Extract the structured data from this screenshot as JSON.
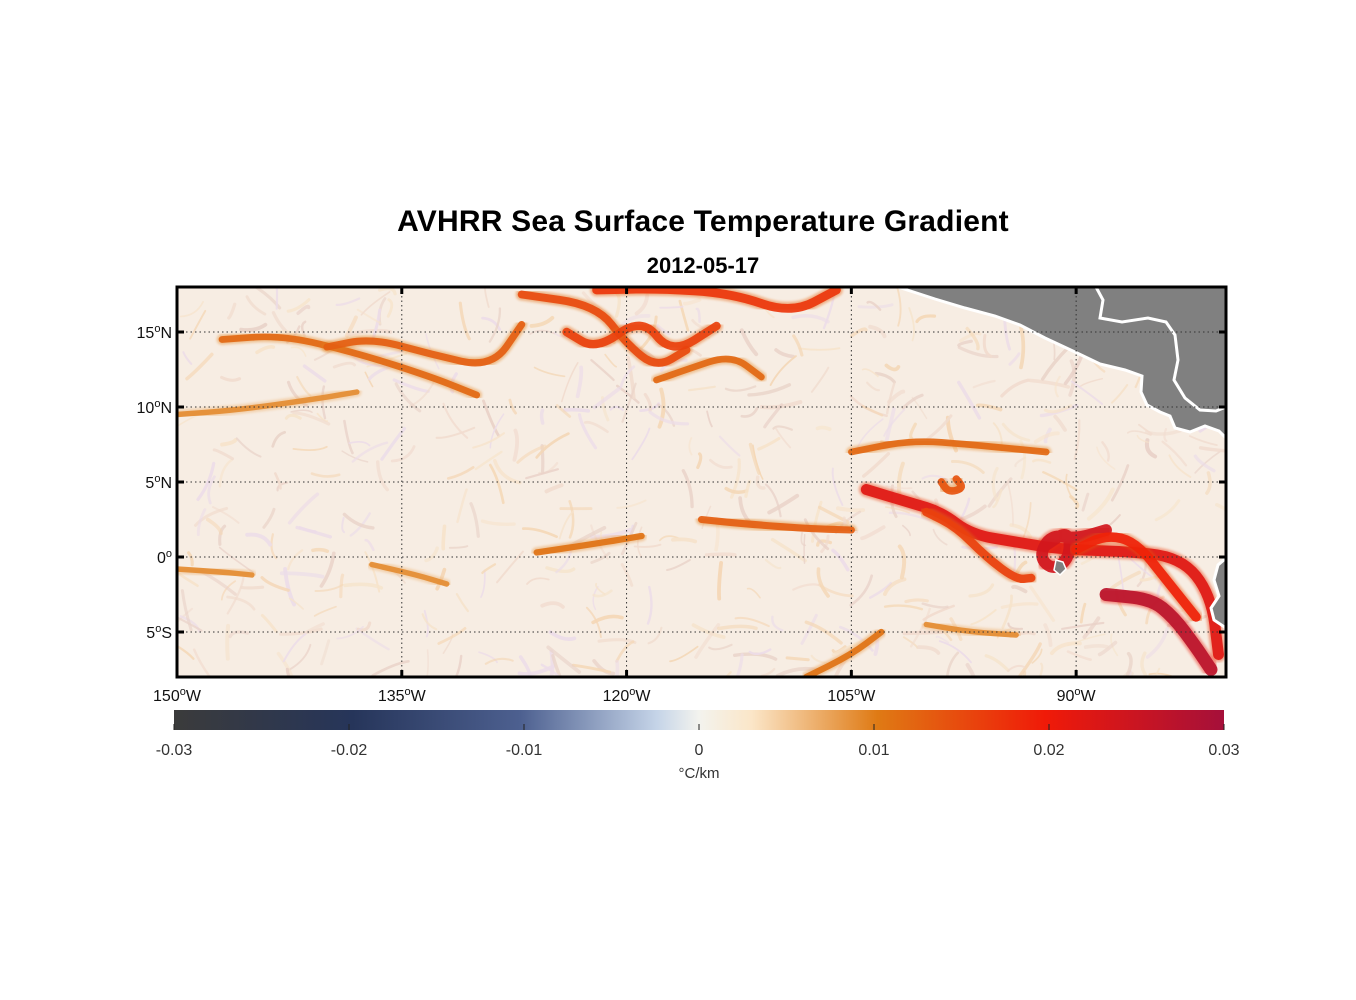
{
  "figure": {
    "title": "AVHRR Sea Surface Temperature Gradient",
    "subtitle": "2012-05-17"
  },
  "map": {
    "projection": "equirectangular",
    "lon_range": [
      -150,
      -80
    ],
    "lat_range": [
      -8,
      18
    ],
    "grid": "dotted",
    "land_color": "#808080",
    "coast_color": "#ffffff",
    "ocean_base_color": "#f7ede3",
    "lat_ticks": [
      {
        "value": 15,
        "label": "15",
        "hemi": "N"
      },
      {
        "value": 10,
        "label": "10",
        "hemi": "N"
      },
      {
        "value": 5,
        "label": "5",
        "hemi": "N"
      },
      {
        "value": 0,
        "label": "0",
        "hemi": ""
      },
      {
        "value": -5,
        "label": "5",
        "hemi": "S"
      }
    ],
    "lon_ticks": [
      {
        "value": -150,
        "label": "150",
        "hemi": "W"
      },
      {
        "value": -135,
        "label": "135",
        "hemi": "W"
      },
      {
        "value": -120,
        "label": "120",
        "hemi": "W"
      },
      {
        "value": -105,
        "label": "105",
        "hemi": "W"
      },
      {
        "value": -90,
        "label": "90",
        "hemi": "W"
      }
    ]
  },
  "colorbar": {
    "range": [
      -0.03,
      0.03
    ],
    "tick_values": [
      -0.03,
      -0.02,
      -0.01,
      0,
      0.01,
      0.02,
      0.03
    ],
    "tick_labels": [
      "-0.03",
      "-0.02",
      "-0.01",
      "0",
      "0.01",
      "0.02",
      "0.03"
    ],
    "units": "°C/km",
    "colormap": [
      {
        "v": 0.0,
        "c": "#3b3b3b"
      },
      {
        "v": 0.17,
        "c": "#26355a"
      },
      {
        "v": 0.33,
        "c": "#4d6090"
      },
      {
        "v": 0.46,
        "c": "#c5d4e8"
      },
      {
        "v": 0.5,
        "c": "#f3f3ee"
      },
      {
        "v": 0.55,
        "c": "#fbe6c8"
      },
      {
        "v": 0.67,
        "c": "#df7a14"
      },
      {
        "v": 0.83,
        "c": "#f01a08"
      },
      {
        "v": 1.0,
        "c": "#a5103a"
      }
    ]
  },
  "chart_data": {
    "type": "heatmap",
    "title": "AVHRR Sea Surface Temperature Gradient",
    "subtitle": "2012-05-17",
    "x_range": [
      -150,
      -80
    ],
    "y_range": [
      -8,
      18
    ],
    "value_range": [
      -0.03,
      0.03
    ],
    "units": "°C/km",
    "fronts": [
      {
        "lon": [
          -147,
          -143,
          -138,
          -133,
          -130
        ],
        "lat": [
          14.5,
          14.8,
          13.6,
          12.0,
          10.8
        ],
        "value": 0.012
      },
      {
        "lon": [
          -140,
          -137,
          -133,
          -129,
          -127
        ],
        "lat": [
          14.0,
          14.6,
          13.5,
          12.6,
          15.5
        ],
        "value": 0.013
      },
      {
        "lon": [
          -127,
          -122,
          -120,
          -118,
          -116
        ],
        "lat": [
          17.5,
          16.8,
          14.2,
          12.6,
          13.8
        ],
        "value": 0.015
      },
      {
        "lon": [
          -124,
          -122,
          -119,
          -117,
          -114
        ],
        "lat": [
          15.0,
          13.8,
          16.0,
          13.5,
          15.4
        ],
        "value": 0.016
      },
      {
        "lon": [
          -122,
          -118,
          -113,
          -109,
          -106
        ],
        "lat": [
          17.8,
          17.9,
          17.6,
          16.2,
          17.8
        ],
        "value": 0.017
      },
      {
        "lon": [
          -118,
          -116,
          -113,
          -111
        ],
        "lat": [
          11.8,
          12.5,
          13.5,
          12.0
        ],
        "value": 0.012
      },
      {
        "lon": [
          -150,
          -146,
          -141,
          -138
        ],
        "lat": [
          9.5,
          9.8,
          10.5,
          11.0
        ],
        "value": 0.009
      },
      {
        "lon": [
          -105,
          -101,
          -97,
          -92
        ],
        "lat": [
          7.0,
          7.8,
          7.5,
          7.0
        ],
        "value": 0.012
      },
      {
        "lon": [
          -104,
          -101,
          -99,
          -97,
          -94,
          -91,
          -87,
          -83,
          -81,
          -80.5
        ],
        "lat": [
          4.5,
          3.6,
          3.0,
          1.5,
          1.0,
          0.5,
          0.4,
          0.0,
          -2.5,
          -6.5
        ],
        "value": 0.022
      },
      {
        "lon": [
          -100,
          -98,
          -96,
          -94,
          -93
        ],
        "lat": [
          3.0,
          2.0,
          0.0,
          -1.5,
          -1.4
        ],
        "value": 0.016
      },
      {
        "lon": [
          -92,
          -90.5,
          -90.4,
          -91.5,
          -92.5,
          -91.7,
          -90,
          -88
        ],
        "lat": [
          0.8,
          1.8,
          0.0,
          -0.9,
          0.0,
          1.5,
          1.2,
          1.8
        ],
        "value": 0.024
      },
      {
        "lon": [
          -90,
          -88,
          -86,
          -84,
          -82
        ],
        "lat": [
          0.5,
          1.5,
          1.0,
          -1.5,
          -4.0
        ],
        "value": 0.019
      },
      {
        "lon": [
          -88,
          -85,
          -83.5,
          -82,
          -81
        ],
        "lat": [
          -2.5,
          -2.8,
          -4.0,
          -6.0,
          -7.5
        ],
        "value": 0.027
      },
      {
        "lon": [
          -98,
          -97.5,
          -98.5,
          -99
        ],
        "lat": [
          5.2,
          4.6,
          4.3,
          5.0
        ],
        "value": 0.014
      },
      {
        "lon": [
          -126,
          -122,
          -119
        ],
        "lat": [
          0.3,
          0.9,
          1.4
        ],
        "value": 0.011
      },
      {
        "lon": [
          -115,
          -112,
          -108,
          -105
        ],
        "lat": [
          2.5,
          2.2,
          1.9,
          1.8
        ],
        "value": 0.013
      },
      {
        "lon": [
          -150,
          -147,
          -145
        ],
        "lat": [
          -0.8,
          -1.0,
          -1.2
        ],
        "value": 0.009
      },
      {
        "lon": [
          -137,
          -134,
          -132
        ],
        "lat": [
          -0.5,
          -1.2,
          -1.8
        ],
        "value": 0.009
      },
      {
        "lon": [
          -108,
          -105,
          -103
        ],
        "lat": [
          -8.0,
          -6.5,
          -5.0
        ],
        "value": 0.011
      },
      {
        "lon": [
          -100,
          -97,
          -94
        ],
        "lat": [
          -4.5,
          -5.0,
          -5.2
        ],
        "value": 0.009
      }
    ]
  }
}
